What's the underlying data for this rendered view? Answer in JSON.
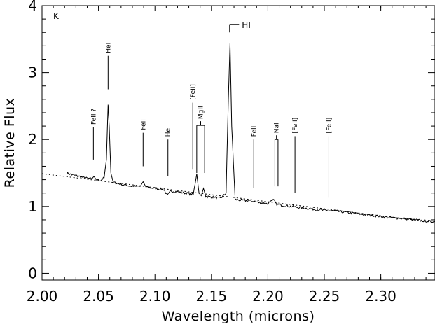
{
  "chart_data": {
    "type": "line",
    "title": "",
    "panel_label": "K",
    "xlabel": "Wavelength (microns)",
    "ylabel": "Relative Flux",
    "xlim": [
      2.0,
      2.348
    ],
    "ylim": [
      -0.1,
      4.0
    ],
    "x_ticks": [
      2.0,
      2.05,
      2.1,
      2.15,
      2.2,
      2.25,
      2.3
    ],
    "x_tick_labels": [
      "2.00",
      "2.05",
      "2.10",
      "2.15",
      "2.20",
      "2.25",
      "2.30"
    ],
    "y_ticks": [
      0,
      1,
      2,
      3,
      4
    ],
    "y_tick_labels": [
      "0",
      "1",
      "2",
      "3",
      "4"
    ],
    "grid": false,
    "continuum": {
      "style": "dotted",
      "x": [
        2.0,
        2.348
      ],
      "y": [
        1.49,
        0.76
      ]
    },
    "spectrum": {
      "x": [
        2.022,
        2.025,
        2.03,
        2.035,
        2.04,
        2.044,
        2.046,
        2.048,
        2.052,
        2.055,
        2.057,
        2.0585,
        2.0595,
        2.061,
        2.063,
        2.07,
        2.08,
        2.087,
        2.0895,
        2.092,
        2.1,
        2.108,
        2.111,
        2.114,
        2.12,
        2.13,
        2.134,
        2.137,
        2.139,
        2.141,
        2.143,
        2.145,
        2.15,
        2.158,
        2.163,
        2.165,
        2.1665,
        2.168,
        2.171,
        2.178,
        2.186,
        2.195,
        2.2,
        2.2055,
        2.208,
        2.212,
        2.22,
        2.23,
        2.24,
        2.25,
        2.26,
        2.27,
        2.28,
        2.29,
        2.3,
        2.31,
        2.32,
        2.33,
        2.34,
        2.348
      ],
      "y": [
        1.5,
        1.48,
        1.46,
        1.44,
        1.42,
        1.41,
        1.45,
        1.4,
        1.39,
        1.43,
        1.7,
        2.52,
        2.2,
        1.5,
        1.36,
        1.33,
        1.3,
        1.3,
        1.37,
        1.29,
        1.27,
        1.25,
        1.16,
        1.23,
        1.22,
        1.19,
        1.18,
        1.49,
        1.2,
        1.16,
        1.27,
        1.15,
        1.14,
        1.12,
        1.2,
        2.6,
        3.44,
        2.2,
        1.1,
        1.09,
        1.08,
        1.05,
        1.04,
        1.1,
        1.03,
        1.02,
        1.0,
        0.98,
        0.96,
        0.94,
        0.93,
        0.91,
        0.89,
        0.87,
        0.85,
        0.83,
        0.82,
        0.8,
        0.78,
        0.77
      ]
    },
    "annotations": [
      {
        "label": "FeII ?",
        "x": 2.0455,
        "y_bottom": 1.7,
        "y_top": 2.18
      },
      {
        "label": "HeI",
        "x": 2.0585,
        "y_bottom": 2.75,
        "y_top": 3.25
      },
      {
        "label": "FeII",
        "x": 2.0895,
        "y_bottom": 1.6,
        "y_top": 2.1
      },
      {
        "label": "HeI",
        "x": 2.1115,
        "y_bottom": 1.45,
        "y_top": 2.0
      },
      {
        "label": "[FeII]",
        "x": 2.1335,
        "y_bottom": 1.55,
        "y_top": 2.55
      },
      {
        "label": "MgII",
        "x": 2.1405,
        "x_pair": [
          2.137,
          2.144
        ],
        "y_bottom": 1.5,
        "y_top": 2.21
      },
      {
        "label": "HI",
        "x": 2.1661,
        "bracket_right": 2.1745,
        "y_bottom": 3.6,
        "y_top": 3.72
      },
      {
        "label": "FeII",
        "x": 2.1875,
        "y_bottom": 1.28,
        "y_top": 2.0
      },
      {
        "label": "NaI",
        "x": 2.2069,
        "x_pair": [
          2.2062,
          2.209
        ],
        "y_bottom": 1.3,
        "y_top": 2.0
      },
      {
        "label": "[FeII]",
        "x": 2.224,
        "y_bottom": 1.2,
        "y_top": 2.05
      },
      {
        "label": "[FeII]",
        "x": 2.254,
        "y_bottom": 1.13,
        "y_top": 2.05
      }
    ]
  }
}
